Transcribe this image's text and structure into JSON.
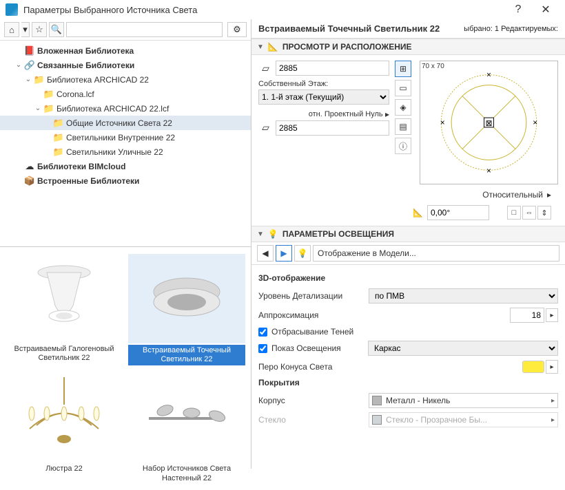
{
  "window_title": "Параметры Выбранного Источника Света",
  "selection_info": "ыбрано: 1 Редактируемых:",
  "toolbar": {
    "home_icon": "⌂",
    "star_icon": "☆",
    "search_icon": "🔍",
    "gear_icon": "⚙",
    "dropdown": "▾"
  },
  "tree": [
    {
      "indent": 1,
      "tw": "",
      "icon": "📕",
      "label": "Вложенная Библиотека",
      "bold": true
    },
    {
      "indent": 1,
      "tw": "⌄",
      "icon": "🔗",
      "label": "Связанные Библиотеки",
      "bold": true
    },
    {
      "indent": 2,
      "tw": "⌄",
      "icon": "📁",
      "label": "Библиотека ARCHICAD 22"
    },
    {
      "indent": 3,
      "tw": "",
      "icon": "📁",
      "label": "Corona.lcf"
    },
    {
      "indent": 3,
      "tw": "⌄",
      "icon": "📁",
      "label": "Библиотека ARCHICAD 22.lcf"
    },
    {
      "indent": 4,
      "tw": "",
      "icon": "📁",
      "label": "Общие Источники Света 22",
      "sel": true
    },
    {
      "indent": 4,
      "tw": "",
      "icon": "📁",
      "label": "Светильники Внутренние 22"
    },
    {
      "indent": 4,
      "tw": "",
      "icon": "📁",
      "label": "Светильники Уличные 22"
    },
    {
      "indent": 1,
      "tw": "",
      "icon": "☁",
      "label": "Библиотеки BIMcloud",
      "bold": true
    },
    {
      "indent": 1,
      "tw": "",
      "icon": "📦",
      "label": "Встроенные Библиотеки",
      "bold": true
    }
  ],
  "catalog": [
    {
      "name": "Встраиваемый Галогеновый Светильник 22",
      "sel": false,
      "kind": "halogen"
    },
    {
      "name": "Встраиваемый Точечный Светильник 22",
      "sel": true,
      "kind": "spot"
    },
    {
      "name": "Люстра 22",
      "sel": false,
      "kind": "chandelier"
    },
    {
      "name": "Набор Источников Света Настенный 22",
      "sel": false,
      "kind": "wallset"
    }
  ],
  "object_title": "Встраиваемый Точечный Светильник 22",
  "sections": {
    "preview": "ПРОСМОТР И РАСПОЛОЖЕНИЕ",
    "lighting": "ПАРАМЕТРЫ ОСВЕЩЕНИЯ"
  },
  "preview": {
    "elev1": "2885",
    "storey_label": "Собственный Этаж:",
    "storey_value": "1. 1-й этаж (Текущий)",
    "rel_label": "отн. Проектный Нуль",
    "elev2": "2885",
    "dims": "70 x 70",
    "relative_label": "Относительный",
    "angle": "0,00°",
    "accent": "#c9b42e"
  },
  "param_nav": {
    "prev": "◀",
    "next": "▶",
    "icon": "💡",
    "path": "Отображение в Модели..."
  },
  "params": {
    "grp_3d": "3D-отображение",
    "detail_lbl": "Уровень Детализации",
    "detail_val": "по ПМВ",
    "approx_lbl": "Аппроксимация",
    "approx_val": "18",
    "shadow_lbl": "Отбрасывание Теней",
    "shadow_chk": true,
    "showlight_lbl": "Показ Освещения",
    "showlight_chk": true,
    "showlight_val": "Каркас",
    "pen_lbl": "Перо Конуса Света",
    "pen_color": "#ffeb3b",
    "grp_surf": "Покрытия",
    "body_lbl": "Корпус",
    "body_val": "Металл - Никель",
    "body_sw": "#b8b8b8",
    "glass_lbl": "Стекло",
    "glass_val": "Стекло - Прозрачное Бы...",
    "glass_sw": "#d0d5d8"
  }
}
